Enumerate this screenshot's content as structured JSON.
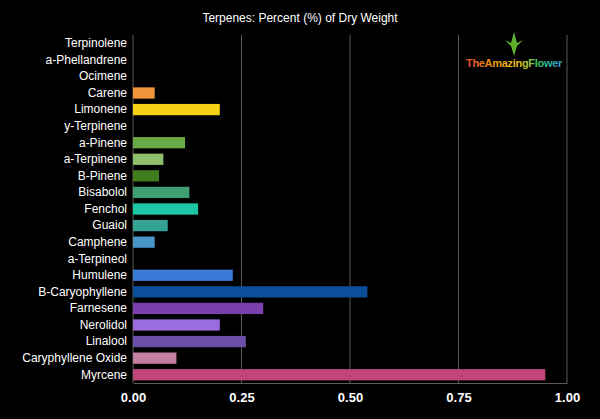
{
  "chart_data": {
    "type": "bar",
    "orientation": "horizontal",
    "title": "Terpenes: Percent (%) of Dry Weight",
    "annotations": [
      "TheAmazingFlower"
    ],
    "categories": [
      "Terpinolene",
      "a-Phellandrene",
      "Ocimene",
      "Carene",
      "Limonene",
      "y-Terpinene",
      "a-Pinene",
      "a-Terpinene",
      "B-Pinene",
      "Bisabolol",
      "Fenchol",
      "Guaiol",
      "Camphene",
      "a-Terpineol",
      "Humulene",
      "B-Caryophyllene",
      "Farnesene",
      "Nerolidol",
      "Linalool",
      "Caryphyllene Oxide",
      "Myrcene"
    ],
    "values": [
      0,
      0,
      0,
      0.05,
      0.2,
      0,
      0.12,
      0.07,
      0.06,
      0.13,
      0.15,
      0.08,
      0.05,
      0,
      0.23,
      0.54,
      0.3,
      0.2,
      0.26,
      0.1,
      0.95
    ],
    "colors": [
      "#e15759",
      "#ff9d5c",
      "#f5b041",
      "#f0953a",
      "#f5d214",
      "#c8d44a",
      "#6aaa46",
      "#8fbf6a",
      "#3f7d1f",
      "#3f9e72",
      "#1fc6a6",
      "#34a394",
      "#4a95c8",
      "#5a8bd6",
      "#3b7ad6",
      "#0b4f9a",
      "#7c3fae",
      "#9b6be0",
      "#6b4fa8",
      "#c57fa2",
      "#c0457a"
    ],
    "xlim": [
      0,
      1
    ],
    "xticks": [
      {
        "value": 0,
        "label": "0.00"
      },
      0.25,
      {
        "value": 0.5,
        "label": "0.50"
      },
      0.75,
      {
        "value": 1,
        "label": "1.00"
      }
    ],
    "grid": true
  }
}
